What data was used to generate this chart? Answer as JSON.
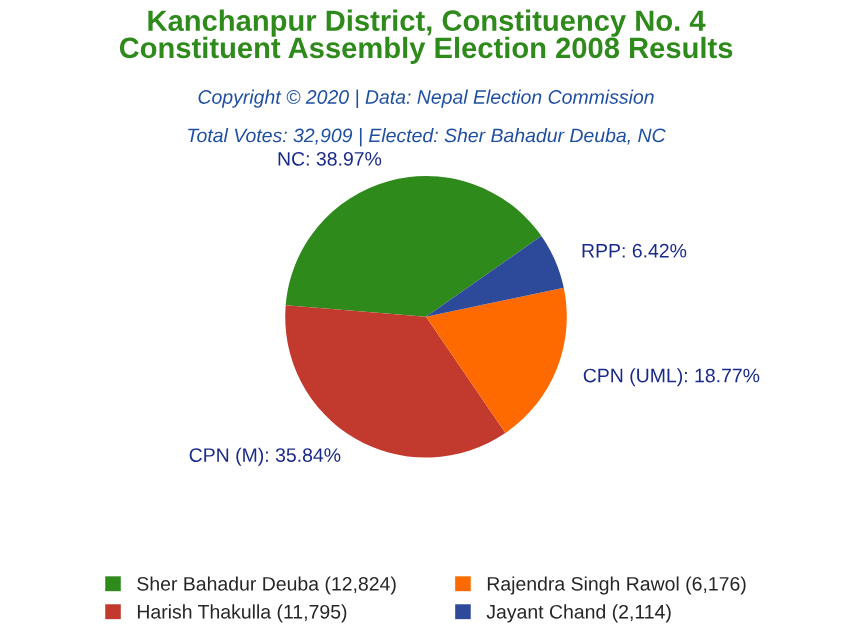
{
  "chart_data": {
    "type": "pie",
    "title": "Kanchanpur District, Constituency No. 4\nConstituent Assembly Election 2008 Results",
    "subtitle": "Copyright © 2020 | Data: Nepal Election Commission",
    "annotations": [
      "Total Votes: 32,909 | Elected: Sher Bahadur Deuba, NC"
    ],
    "categories": [
      "Sher Bahadur Deuba (12,824)",
      "Harish Thakulla (11,795)",
      "Rajendra Singh Rawol (6,176)",
      "Jayant Chand (2,114)"
    ],
    "values": [
      38.97,
      35.84,
      18.77,
      6.42
    ],
    "value_labels": [
      "NC: 38.97%",
      "CPN (M): 35.84%",
      "CPN (UML): 18.77%",
      "RPP: 6.42%"
    ],
    "colors": [
      "#2f8a1c",
      "#c23a2e",
      "#ff6a00",
      "#2c4a99"
    ],
    "legend": "bottom"
  }
}
